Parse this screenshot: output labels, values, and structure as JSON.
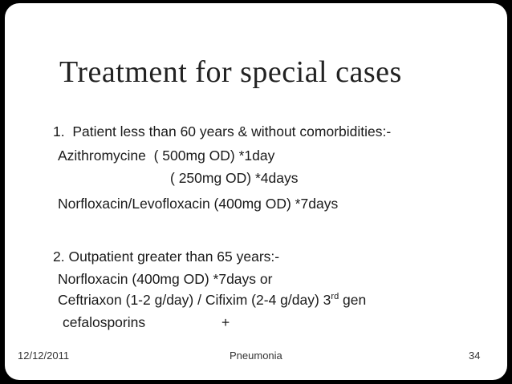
{
  "title": "Treatment for special cases",
  "items": [
    {
      "heading": "1.  Patient less than 60 years & without comorbidities:-",
      "lines": [
        "Azithromycine  ( 500mg OD) *1day",
        "( 250mg OD) *4days",
        "Norfloxacin/Levofloxacin (400mg OD) *7days"
      ]
    },
    {
      "heading": "2. Outpatient greater than 65 years:-",
      "lines": [
        "Norfloxacin (400mg OD) *7days or"
      ],
      "ref_line": {
        "text": "Ceftriaxon (1-2 g/day) / Cifixim (2-4 g/day) 3",
        "sup": "rd",
        "after": " gen"
      },
      "tail": [
        "cefalosporins",
        "+"
      ]
    }
  ],
  "footer": {
    "date": "12/12/2011",
    "center": "Pneumonia",
    "page": "34"
  }
}
